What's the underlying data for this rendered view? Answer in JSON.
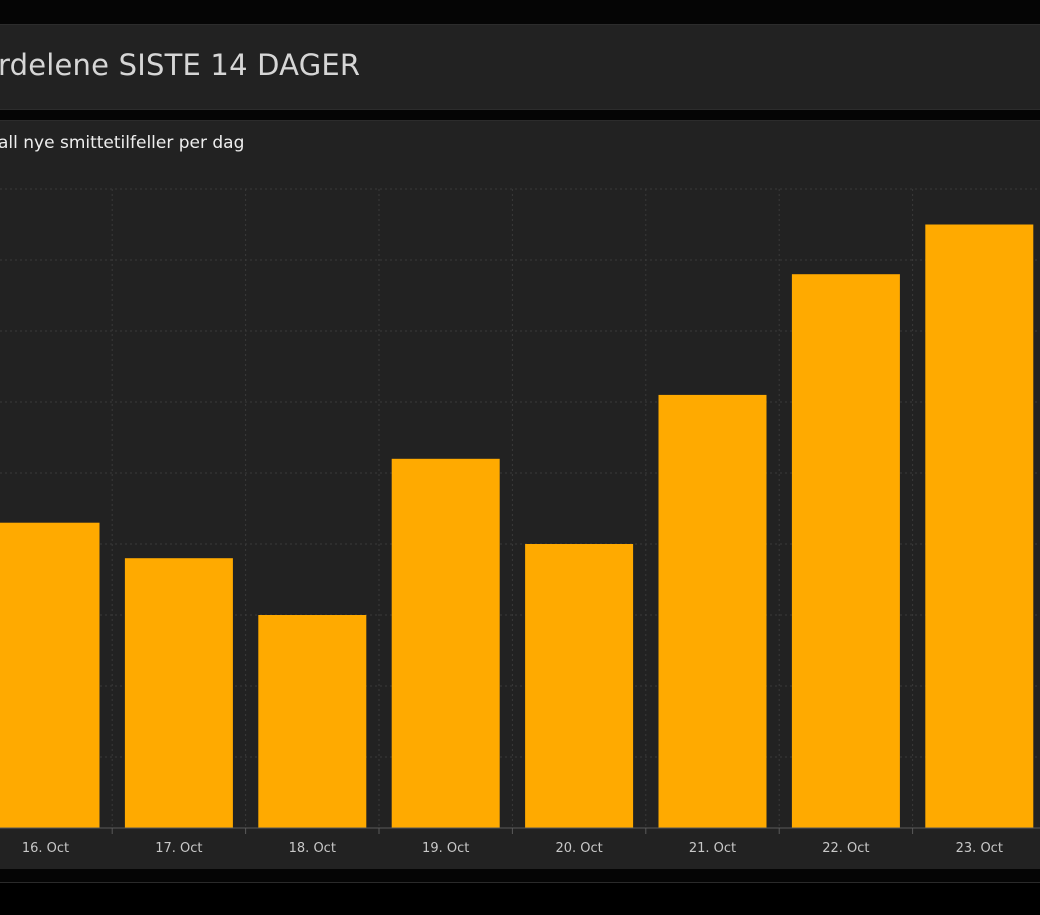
{
  "header": {
    "title": "rdelene SISTE 14 DAGER"
  },
  "chart_panel": {
    "subtitle": "all nye smittetilfeller per dag"
  },
  "colors": {
    "bar": "#ffaa00",
    "panel_background": "#222222",
    "page_background": "#000000",
    "grid": "#3a3a3a",
    "text": "#d6d6d6"
  },
  "chart_data": {
    "type": "bar",
    "title": "rdelene SISTE 14 DAGER",
    "subtitle": "all nye smittetilfeller per dag",
    "xlabel": "",
    "ylabel": "",
    "categories": [
      "16. Oct",
      "17. Oct",
      "18. Oct",
      "19. Oct",
      "20. Oct",
      "21. Oct",
      "22. Oct",
      "23. Oct"
    ],
    "values": [
      43,
      38,
      30,
      52,
      40,
      61,
      78,
      85
    ],
    "ylim": [
      0,
      90
    ],
    "grid": true,
    "legend": "none"
  }
}
